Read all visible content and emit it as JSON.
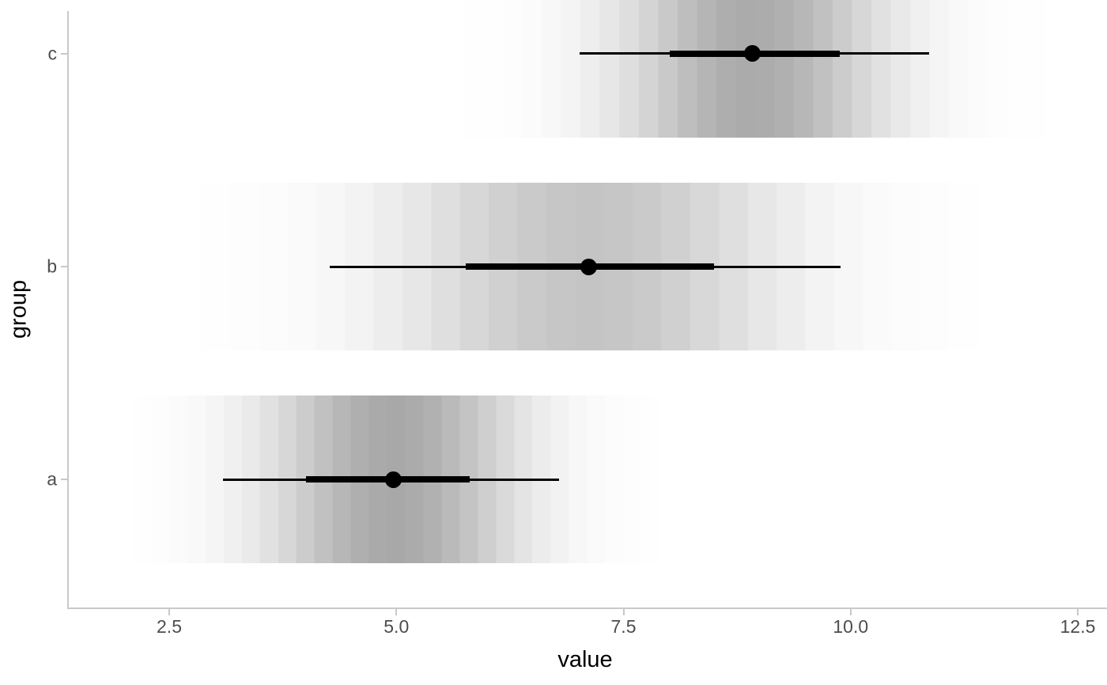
{
  "chart_data": {
    "type": "pointinterval-gradient",
    "title": "",
    "xlabel": "value",
    "ylabel": "group",
    "x_ticks": [
      {
        "value": 2.5,
        "label": "2.5"
      },
      {
        "value": 5.0,
        "label": "5.0"
      },
      {
        "value": 7.5,
        "label": "7.5"
      },
      {
        "value": 10.0,
        "label": "10.0"
      },
      {
        "value": 12.5,
        "label": "12.5"
      }
    ],
    "y_categories_top_to_bottom": [
      "c",
      "b",
      "a"
    ],
    "grid": "off",
    "legend": "none",
    "series_note": "each group: point = median dot, thick = inner (~66%) interval, thin = outer (~95%) interval, band = gradient slab extent (density fade), sd = gaussian spread of gradient, peak_alpha = darkest gradient opacity",
    "groups": [
      {
        "label": "c",
        "point": 8.92,
        "thick": [
          8.01,
          9.88
        ],
        "thin": [
          7.02,
          10.86
        ],
        "band": [
          5.75,
          12.15
        ],
        "sd": 0.99,
        "peak_alpha": 0.33
      },
      {
        "label": "b",
        "point": 7.12,
        "thick": [
          5.76,
          8.5
        ],
        "thin": [
          4.27,
          9.89
        ],
        "band": [
          1.9,
          11.4
        ],
        "sd": 1.43,
        "peak_alpha": 0.23
      },
      {
        "label": "a",
        "point": 4.97,
        "thick": [
          4.01,
          5.81
        ],
        "thin": [
          3.09,
          6.79
        ],
        "band": [
          2.1,
          8.1
        ],
        "sd": 0.94,
        "peak_alpha": 0.34
      }
    ],
    "colors": {
      "background": "#ffffff",
      "interval": "#000000",
      "point": "#000000",
      "axis_line": "#c9c9c9",
      "tick_mark": "#c9c9c9",
      "tick_label": "#4d4d4d",
      "axis_title": "#000000"
    }
  }
}
